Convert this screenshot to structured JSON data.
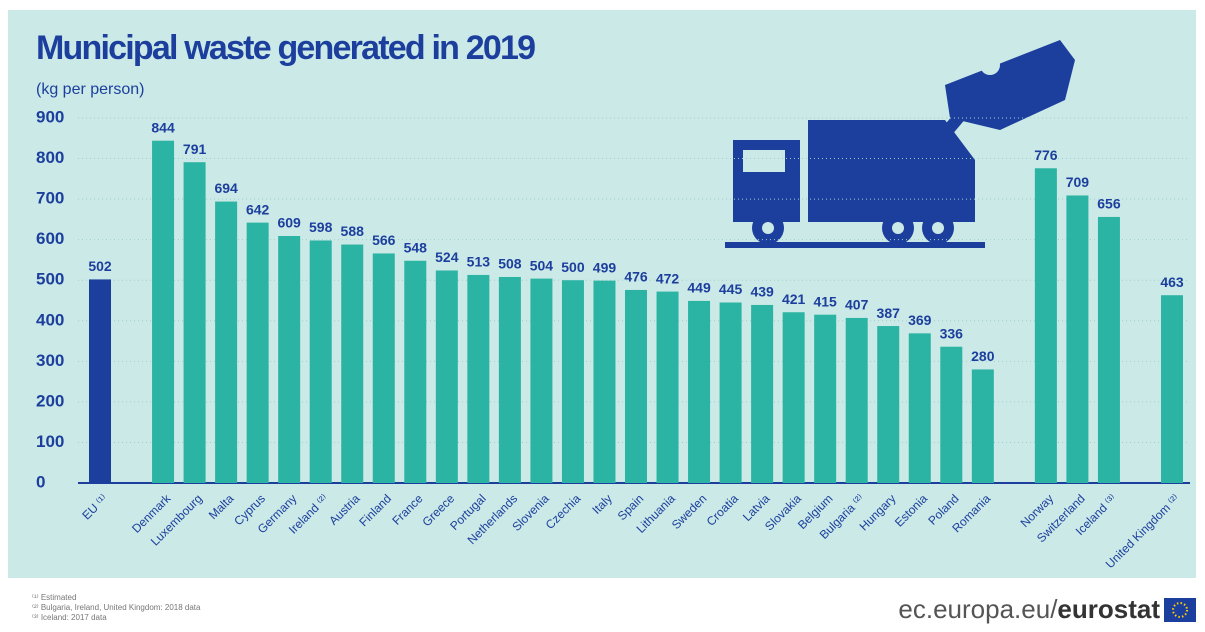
{
  "chart_data": {
    "type": "bar",
    "title": "Municipal waste generated in 2019",
    "subtitle": "(kg per person)",
    "categories": [
      "EU ⁽¹⁾",
      null,
      "Denmark",
      "Luxembourg",
      "Malta",
      "Cyprus",
      "Germany",
      "Ireland ⁽²⁾",
      "Austria",
      "Finland",
      "France",
      "Greece",
      "Portugal",
      "Netherlands",
      "Slovenia",
      "Czechia",
      "Italy",
      "Spain",
      "Lithuania",
      "Sweden",
      "Croatia",
      "Latvia",
      "Slovakia",
      "Belgium",
      "Bulgaria ⁽²⁾",
      "Hungary",
      "Estonia",
      "Poland",
      "Romania",
      null,
      "Norway",
      "Switzerland",
      "Iceland ⁽³⁾",
      null,
      "United Kingdom ⁽²⁾"
    ],
    "values": [
      502,
      null,
      844,
      791,
      694,
      642,
      609,
      598,
      588,
      566,
      548,
      524,
      513,
      508,
      504,
      500,
      499,
      476,
      472,
      449,
      445,
      439,
      421,
      415,
      407,
      387,
      369,
      336,
      280,
      null,
      776,
      709,
      656,
      null,
      463
    ],
    "colors": [
      "#1c3f9e",
      null,
      "#2bb3a4",
      "#2bb3a4",
      "#2bb3a4",
      "#2bb3a4",
      "#2bb3a4",
      "#2bb3a4",
      "#2bb3a4",
      "#2bb3a4",
      "#2bb3a4",
      "#2bb3a4",
      "#2bb3a4",
      "#2bb3a4",
      "#2bb3a4",
      "#2bb3a4",
      "#2bb3a4",
      "#2bb3a4",
      "#2bb3a4",
      "#2bb3a4",
      "#2bb3a4",
      "#2bb3a4",
      "#2bb3a4",
      "#2bb3a4",
      "#2bb3a4",
      "#2bb3a4",
      "#2bb3a4",
      "#2bb3a4",
      "#2bb3a4",
      null,
      "#2bb3a4",
      "#2bb3a4",
      "#2bb3a4",
      null,
      "#2bb3a4"
    ],
    "ylim": [
      0,
      900
    ],
    "yticks": [
      0,
      100,
      200,
      300,
      400,
      500,
      600,
      700,
      800,
      900
    ],
    "grid": true,
    "footnotes": [
      "⁽¹⁾ Estimated",
      "⁽²⁾ Bulgaria, Ireland, United Kingdom: 2018 data",
      "⁽³⁾ Iceland: 2017 data"
    ],
    "source": "ec.europa.eu/",
    "brand": "eurostat"
  }
}
